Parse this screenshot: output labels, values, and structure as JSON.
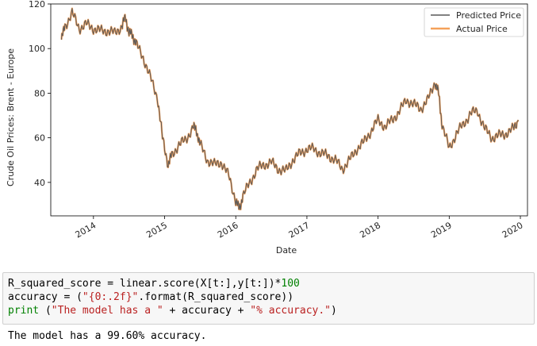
{
  "chart_data": {
    "type": "line",
    "ylabel": "Crude Oil Prices: Brent - Europe",
    "xlabel": "Date",
    "ylim": [
      25,
      120
    ],
    "xlim": [
      2013.4,
      2020.1
    ],
    "yticks": [
      "40",
      "60",
      "80",
      "100",
      "120"
    ],
    "xticks": [
      "2014",
      "2015",
      "2016",
      "2017",
      "2018",
      "2019",
      "2020"
    ],
    "legend_position": "top-right",
    "series": [
      {
        "name": "Predicted Price",
        "color": "#595959",
        "x": [
          2013.55,
          2013.6,
          2013.7,
          2013.8,
          2013.9,
          2014.0,
          2014.1,
          2014.2,
          2014.3,
          2014.4,
          2014.45,
          2014.5,
          2014.55,
          2014.6,
          2014.7,
          2014.8,
          2014.9,
          2014.97,
          2015.05,
          2015.1,
          2015.2,
          2015.3,
          2015.4,
          2015.45,
          2015.5,
          2015.6,
          2015.7,
          2015.8,
          2015.9,
          2016.0,
          2016.05,
          2016.1,
          2016.2,
          2016.3,
          2016.4,
          2016.5,
          2016.6,
          2016.7,
          2016.8,
          2016.9,
          2017.0,
          2017.1,
          2017.2,
          2017.3,
          2017.4,
          2017.5,
          2017.6,
          2017.7,
          2017.8,
          2017.9,
          2018.0,
          2018.1,
          2018.2,
          2018.3,
          2018.4,
          2018.5,
          2018.6,
          2018.7,
          2018.8,
          2018.85,
          2018.9,
          2019.0,
          2019.1,
          2019.2,
          2019.3,
          2019.4,
          2019.5,
          2019.6,
          2019.7,
          2019.8,
          2019.9,
          2019.97
        ],
        "values": [
          104,
          110,
          116,
          109,
          111,
          109,
          108,
          108,
          107,
          110,
          114,
          107,
          106,
          102,
          96,
          87,
          78,
          60,
          48,
          52,
          57,
          59,
          65,
          63,
          57,
          50,
          48,
          49,
          43,
          32,
          28,
          34,
          40,
          46,
          48,
          49,
          46,
          45,
          50,
          53,
          55,
          55,
          53,
          52,
          50,
          46,
          50,
          55,
          58,
          63,
          68,
          65,
          68,
          72,
          77,
          75,
          73,
          77,
          85,
          80,
          66,
          55,
          62,
          66,
          71,
          72,
          64,
          60,
          61,
          62,
          64,
          68
        ]
      },
      {
        "name": "Actual Price",
        "color": "#f5a15a",
        "x": [
          2013.55,
          2013.6,
          2013.7,
          2013.8,
          2013.9,
          2014.0,
          2014.1,
          2014.2,
          2014.3,
          2014.4,
          2014.45,
          2014.5,
          2014.55,
          2014.6,
          2014.7,
          2014.8,
          2014.9,
          2014.97,
          2015.05,
          2015.1,
          2015.2,
          2015.3,
          2015.4,
          2015.45,
          2015.5,
          2015.6,
          2015.7,
          2015.8,
          2015.9,
          2016.0,
          2016.05,
          2016.1,
          2016.2,
          2016.3,
          2016.4,
          2016.5,
          2016.6,
          2016.7,
          2016.8,
          2016.9,
          2017.0,
          2017.1,
          2017.2,
          2017.3,
          2017.4,
          2017.5,
          2017.6,
          2017.7,
          2017.8,
          2017.9,
          2018.0,
          2018.1,
          2018.2,
          2018.3,
          2018.4,
          2018.5,
          2018.6,
          2018.7,
          2018.8,
          2018.85,
          2018.9,
          2019.0,
          2019.1,
          2019.2,
          2019.3,
          2019.4,
          2019.5,
          2019.6,
          2019.7,
          2019.8,
          2019.9,
          2019.97
        ],
        "values": [
          104,
          110,
          116,
          109,
          111,
          109,
          108,
          108,
          107,
          110,
          114,
          107,
          106,
          102,
          96,
          87,
          78,
          60,
          48,
          52,
          57,
          59,
          65,
          63,
          57,
          50,
          48,
          49,
          43,
          32,
          28,
          34,
          40,
          46,
          48,
          49,
          46,
          45,
          50,
          53,
          55,
          55,
          53,
          52,
          50,
          46,
          50,
          55,
          58,
          63,
          68,
          65,
          68,
          72,
          77,
          75,
          73,
          77,
          85,
          80,
          66,
          55,
          62,
          66,
          71,
          72,
          64,
          60,
          61,
          62,
          64,
          68
        ]
      }
    ]
  },
  "code": {
    "line1_a": "R_squared_score = linear.score(X[t:],y[t:])*",
    "line1_num": "100",
    "line2_a": "accuracy = (",
    "line2_str": "\"{0:.2f}\"",
    "line2_b": ".format(R_squared_score))",
    "line3_kw": "print",
    "line3_a": " (",
    "line3_str1": "\"The model has a \"",
    "line3_b": " + accuracy + ",
    "line3_str2": "\"% accuracy.\"",
    "line3_c": ")"
  },
  "output_text": "The model has a 99.60% accuracy."
}
